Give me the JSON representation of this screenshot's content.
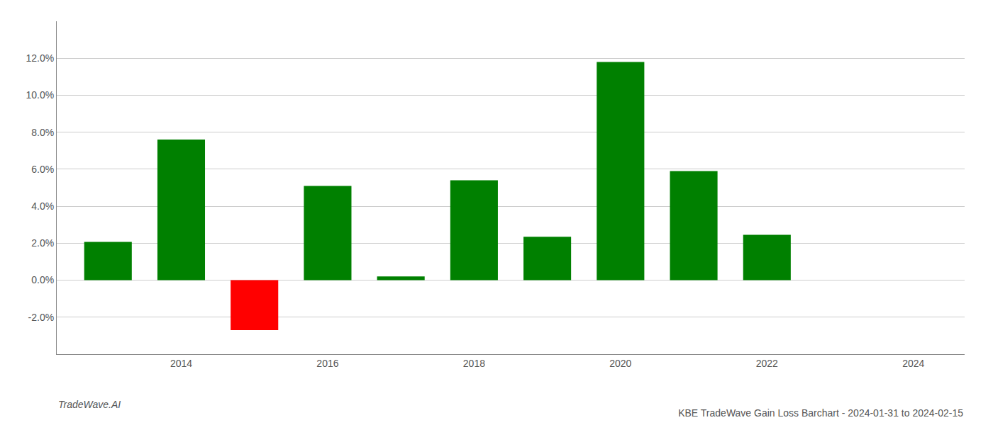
{
  "chart_data": {
    "type": "bar",
    "title": "KBE TradeWave Gain Loss Barchart - 2024-01-31 to 2024-02-15",
    "annotations": [
      "TradeWave.AI"
    ],
    "x": [
      2013,
      2014,
      2015,
      2016,
      2017,
      2018,
      2019,
      2020,
      2021,
      2022,
      2023
    ],
    "values": [
      0.0207,
      0.076,
      -0.027,
      0.051,
      0.002,
      0.054,
      0.0235,
      0.118,
      0.059,
      0.0245,
      0.0
    ],
    "colors": [
      "#008000",
      "#008000",
      "#ff0000",
      "#008000",
      "#008000",
      "#008000",
      "#008000",
      "#008000",
      "#008000",
      "#008000",
      "#008000"
    ],
    "xlim": [
      2012.3,
      2024.7
    ],
    "xticks": [
      2014,
      2016,
      2018,
      2020,
      2022,
      2024
    ],
    "ylim": [
      -0.04,
      0.14
    ],
    "yticks": [
      {
        "value": -0.02,
        "label": "-2.0%"
      },
      {
        "value": 0.0,
        "label": "0.0%"
      },
      {
        "value": 0.02,
        "label": "2.0%"
      },
      {
        "value": 0.04,
        "label": "4.0%"
      },
      {
        "value": 0.06,
        "label": "6.0%"
      },
      {
        "value": 0.08,
        "label": "8.0%"
      },
      {
        "value": 0.1,
        "label": "10.0%"
      },
      {
        "value": 0.12,
        "label": "12.0%"
      }
    ],
    "grid": true
  }
}
